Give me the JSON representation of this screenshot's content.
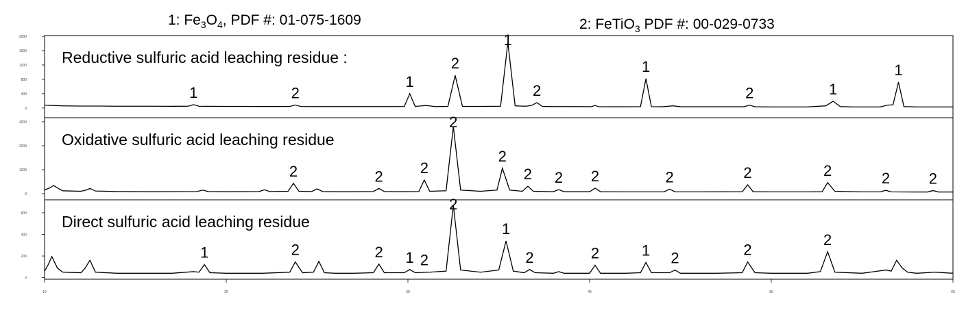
{
  "header": {
    "legend_1": [
      "1: Fe",
      "3",
      "O",
      "4",
      ", PDF #: 01-075-1609"
    ],
    "legend_2": [
      "2: FeTiO",
      "3",
      " PDF #: 00-029-0733"
    ]
  },
  "chart_data": [
    {
      "type": "line",
      "title": "Reductive sulfuric acid leaching residue :",
      "x": [
        10,
        10.5,
        11,
        12,
        13,
        14,
        15,
        16,
        17,
        17.9,
        18.2,
        18.5,
        19,
        20,
        21,
        22,
        23,
        23.5,
        23.8,
        24.1,
        25,
        26,
        27,
        28,
        29,
        29.8,
        30.1,
        30.4,
        31,
        31.5,
        32.2,
        32.6,
        33.0,
        34,
        35.1,
        35.5,
        35.9,
        36.5,
        36.8,
        37.1,
        37.4,
        38,
        39,
        40.1,
        40.3,
        40.5,
        41,
        42,
        42.8,
        43.1,
        43.4,
        44,
        44.6,
        45,
        46,
        47,
        48,
        48.5,
        48.8,
        49.1,
        50,
        51,
        52,
        53,
        53.4,
        53.8,
        54.5,
        55,
        56,
        56.4,
        56.7,
        57,
        57.3,
        58,
        59,
        60
      ],
      "series": [
        {
          "color": "#000000",
          "values": [
            80,
            70,
            60,
            55,
            55,
            50,
            50,
            50,
            48,
            50,
            95,
            50,
            48,
            45,
            45,
            42,
            42,
            45,
            85,
            42,
            40,
            40,
            40,
            40,
            40,
            42,
            400,
            45,
            70,
            40,
            45,
            910,
            45,
            45,
            50,
            1830,
            60,
            50,
            70,
            150,
            45,
            40,
            40,
            38,
            70,
            38,
            35,
            35,
            38,
            820,
            38,
            35,
            60,
            35,
            35,
            35,
            35,
            35,
            80,
            35,
            30,
            30,
            30,
            60,
            190,
            40,
            30,
            30,
            30,
            80,
            90,
            720,
            40,
            30,
            30,
            30
          ]
        }
      ],
      "xlim": [
        10,
        60
      ],
      "ylim": [
        -270,
        2020
      ],
      "yticks": [
        0,
        400,
        800,
        1200,
        1600,
        2000
      ],
      "annotations": [
        {
          "text": "1",
          "x": 18.2
        },
        {
          "text": "2",
          "x": 23.8
        },
        {
          "text": "1",
          "x": 30.1
        },
        {
          "text": "2",
          "x": 32.6
        },
        {
          "text": "1",
          "x": 35.5
        },
        {
          "text": "2",
          "x": 37.1
        },
        {
          "text": "1",
          "x": 43.1
        },
        {
          "text": "2",
          "x": 48.8
        },
        {
          "text": "1",
          "x": 53.4
        },
        {
          "text": "1",
          "x": 57
        }
      ]
    },
    {
      "type": "line",
      "title": "Oxidative sulfuric acid leaching residue",
      "x": [
        10,
        10.3,
        10.5,
        10.8,
        11,
        12,
        12.3,
        12.5,
        12.8,
        14,
        16,
        18.4,
        18.7,
        19,
        20,
        21.8,
        22.1,
        22.4,
        23.4,
        23.7,
        24,
        24.7,
        25,
        25.3,
        26,
        27,
        28.1,
        28.4,
        28.7,
        29.5,
        30.6,
        30.9,
        31.2,
        32.1,
        32.5,
        32.9,
        34,
        34.9,
        35.2,
        35.6,
        36.3,
        36.6,
        36.9,
        38,
        38.3,
        38.6,
        40,
        40.3,
        40.6,
        42,
        44.1,
        44.4,
        44.7,
        46,
        48.4,
        48.7,
        49,
        50,
        52,
        52.8,
        53.1,
        53.5,
        55,
        56,
        56.3,
        56.6,
        58,
        58.6,
        58.9,
        59.2,
        60
      ],
      "series": [
        {
          "color": "#000000",
          "values": [
            150,
            250,
            340,
            200,
            120,
            100,
            150,
            220,
            110,
            90,
            80,
            90,
            150,
            90,
            80,
            90,
            160,
            90,
            100,
            430,
            100,
            90,
            200,
            90,
            80,
            80,
            90,
            220,
            90,
            80,
            90,
            570,
            100,
            120,
            2800,
            150,
            100,
            150,
            1060,
            150,
            100,
            310,
            100,
            80,
            170,
            80,
            80,
            230,
            80,
            75,
            75,
            190,
            75,
            75,
            80,
            370,
            80,
            75,
            75,
            80,
            460,
            100,
            75,
            75,
            140,
            75,
            70,
            70,
            130,
            70,
            70
          ]
        }
      ],
      "xlim": [
        10,
        60
      ],
      "ylim": [
        -257,
        3170
      ],
      "yticks": [
        0,
        1000,
        2000,
        3000
      ],
      "annotations": [
        {
          "text": "2",
          "x": 23.7
        },
        {
          "text": "2",
          "x": 28.4
        },
        {
          "text": "2",
          "x": 30.9
        },
        {
          "text": "2",
          "x": 32.5
        },
        {
          "text": "2",
          "x": 35.2
        },
        {
          "text": "2",
          "x": 36.6
        },
        {
          "text": "2",
          "x": 38.3
        },
        {
          "text": "2",
          "x": 40.3
        },
        {
          "text": "2",
          "x": 44.4
        },
        {
          "text": "2",
          "x": 48.7
        },
        {
          "text": "2",
          "x": 53.1
        },
        {
          "text": "2",
          "x": 56.3
        },
        {
          "text": "2",
          "x": 58.9
        }
      ]
    },
    {
      "type": "line",
      "title": "Direct sulfuric acid leaching residue",
      "x": [
        10,
        10.2,
        10.4,
        10.7,
        11,
        12,
        12.2,
        12.5,
        12.8,
        14,
        16,
        17,
        18.2,
        18.5,
        18.8,
        19.1,
        20,
        22,
        23.5,
        23.8,
        24.2,
        24.8,
        25.1,
        25.4,
        26,
        27,
        28.1,
        28.4,
        28.7,
        29.8,
        30.1,
        30.4,
        31.2,
        32.1,
        32.5,
        32.9,
        34,
        35,
        35.4,
        35.8,
        36.4,
        36.7,
        37,
        38,
        38.3,
        38.6,
        40,
        40.3,
        40.6,
        42,
        42.8,
        43.1,
        43.4,
        44.4,
        44.7,
        45,
        47,
        48.4,
        48.7,
        49.1,
        50,
        52,
        52.7,
        53.1,
        53.5,
        55,
        56.3,
        56.6,
        56.9,
        57.2,
        57.5,
        58,
        59,
        60
      ],
      "series": [
        {
          "color": "#000000",
          "values": [
            60,
            120,
            195,
            90,
            50,
            45,
            80,
            160,
            50,
            40,
            40,
            40,
            55,
            50,
            120,
            45,
            40,
            40,
            50,
            145,
            45,
            50,
            150,
            45,
            40,
            40,
            45,
            125,
            45,
            45,
            75,
            45,
            50,
            60,
            670,
            70,
            50,
            70,
            340,
            60,
            45,
            75,
            45,
            40,
            55,
            40,
            40,
            115,
            40,
            40,
            45,
            140,
            45,
            45,
            70,
            40,
            40,
            45,
            145,
            45,
            40,
            40,
            55,
            240,
            50,
            40,
            70,
            60,
            160,
            90,
            50,
            40,
            50,
            40
          ]
        }
      ],
      "xlim": [
        10,
        60
      ],
      "ylim": [
        -15,
        720
      ],
      "yticks": [
        0,
        200,
        400,
        600
      ],
      "xticks": [
        10,
        20,
        30,
        40,
        50,
        60
      ],
      "annotations": [
        {
          "text": "1",
          "x": 18.8
        },
        {
          "text": "2",
          "x": 23.8
        },
        {
          "text": "2",
          "x": 28.4
        },
        {
          "text": "1",
          "x": 30.1
        },
        {
          "text": "2",
          "x": 30.9
        },
        {
          "text": "2",
          "x": 32.5
        },
        {
          "text": "1",
          "x": 35.4
        },
        {
          "text": "2",
          "x": 36.7
        },
        {
          "text": "2",
          "x": 40.3
        },
        {
          "text": "1",
          "x": 43.1
        },
        {
          "text": "2",
          "x": 44.7
        },
        {
          "text": "2",
          "x": 48.7
        },
        {
          "text": "2",
          "x": 53.1
        }
      ]
    }
  ]
}
